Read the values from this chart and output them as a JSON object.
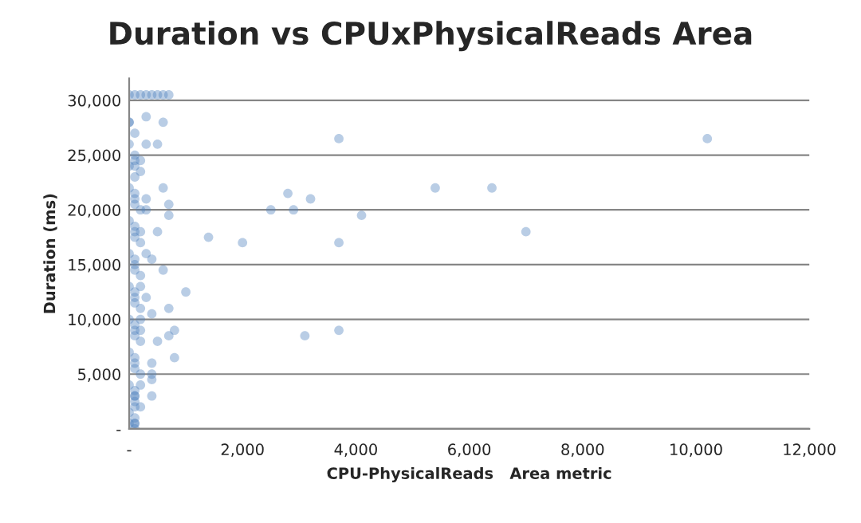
{
  "chart_data": {
    "type": "scatter",
    "title": "Duration vs CPUxPhysicalReads Area",
    "xlabel": "CPU-PhysicalReads   Area metric",
    "ylabel": "Duration (ms)",
    "xlim": [
      0,
      12000
    ],
    "ylim": [
      0,
      32000
    ],
    "xticks": [
      {
        "value": 0,
        "label": "-"
      },
      {
        "value": 2000,
        "label": "2,000"
      },
      {
        "value": 4000,
        "label": "4,000"
      },
      {
        "value": 6000,
        "label": "6,000"
      },
      {
        "value": 8000,
        "label": "8,000"
      },
      {
        "value": 10000,
        "label": "10,000"
      },
      {
        "value": 12000,
        "label": "12,000"
      }
    ],
    "yticks": [
      {
        "value": 0,
        "label": "-"
      },
      {
        "value": 5000,
        "label": "5,000"
      },
      {
        "value": 10000,
        "label": "10,000"
      },
      {
        "value": 15000,
        "label": "15,000"
      },
      {
        "value": 20000,
        "label": "20,000"
      },
      {
        "value": 25000,
        "label": "25,000"
      },
      {
        "value": 30000,
        "label": "30,000"
      }
    ],
    "grid": "y",
    "marker": "circle",
    "series": [
      {
        "color": "#4f81bd",
        "x": [
          3700,
          2800,
          3200,
          2500,
          2900,
          4100,
          1400,
          2000,
          3700,
          1000,
          3100,
          3700,
          5400,
          6400,
          7000,
          10200,
          0,
          100,
          200,
          300,
          400,
          500,
          600,
          700,
          0,
          300,
          600,
          300,
          500,
          200,
          600,
          700,
          700,
          500,
          600,
          400,
          700,
          800,
          700,
          800,
          500,
          400,
          0,
          100,
          100,
          100,
          200,
          0,
          100,
          100,
          100,
          200,
          0,
          100,
          100,
          100,
          200,
          0,
          100,
          100,
          100,
          200,
          0,
          100,
          100,
          100,
          200,
          0,
          100,
          100,
          100,
          200,
          0,
          100,
          100,
          100,
          200,
          0,
          100,
          100,
          100,
          200,
          0,
          100,
          100,
          100,
          0,
          100,
          100,
          0,
          100,
          100,
          0,
          100,
          200,
          300,
          400,
          200,
          300,
          400,
          200,
          300,
          400,
          200,
          300,
          400,
          200
        ],
        "values": [
          26500,
          21500,
          21000,
          20000,
          20000,
          19500,
          17500,
          17000,
          17000,
          12500,
          8500,
          9000,
          22000,
          22000,
          18000,
          26500,
          30500,
          30500,
          30500,
          30500,
          30500,
          30500,
          30500,
          30500,
          28000,
          28500,
          28000,
          26000,
          26000,
          24500,
          22000,
          19500,
          20500,
          18000,
          14500,
          10500,
          11000,
          9000,
          8500,
          6500,
          8000,
          4500,
          22000,
          21500,
          21000,
          20500,
          20000,
          19000,
          18500,
          18000,
          17500,
          17000,
          16000,
          15500,
          15000,
          14500,
          14000,
          13000,
          12500,
          12000,
          11500,
          11000,
          10000,
          9500,
          9000,
          8500,
          8000,
          7000,
          6500,
          6000,
          5500,
          5000,
          4000,
          3500,
          3000,
          2500,
          2000,
          1500,
          1000,
          2000,
          3000,
          4000,
          500,
          500,
          0,
          500,
          24000,
          24500,
          23000,
          26000,
          25000,
          24000,
          28000,
          27000,
          9000,
          12000,
          15500,
          18000,
          21000,
          6000,
          13000,
          16000,
          3000,
          10000,
          20000,
          5000,
          23500
        ]
      }
    ]
  }
}
